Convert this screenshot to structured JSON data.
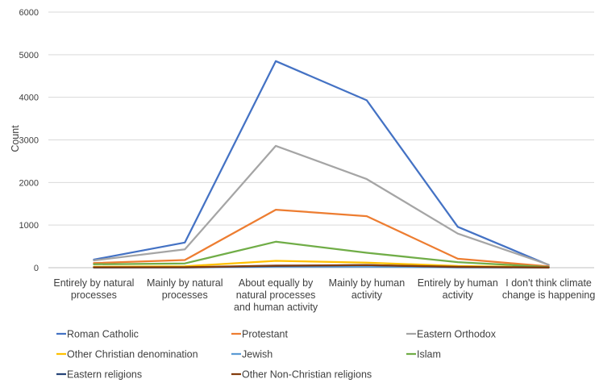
{
  "chart_data": {
    "type": "line",
    "title": "",
    "xlabel": "",
    "ylabel": "Count",
    "ylim": [
      0,
      6000
    ],
    "yticks": [
      0,
      1000,
      2000,
      3000,
      4000,
      5000,
      6000
    ],
    "grid": true,
    "legend_position": "bottom",
    "categories": [
      [
        "Entirely by natural",
        "processes"
      ],
      [
        "Mainly by natural",
        "processes"
      ],
      [
        "About equally by",
        "natural processes",
        "and human activity"
      ],
      [
        "Mainly by human",
        "activity"
      ],
      [
        "Entirely by human",
        "activity"
      ],
      [
        "I don't think climate",
        "change is happening"
      ]
    ],
    "series": [
      {
        "name": "Roman Catholic",
        "color": "#4472c4",
        "values": [
          190,
          590,
          4850,
          3930,
          960,
          65
        ]
      },
      {
        "name": "Protestant",
        "color": "#ed7d31",
        "values": [
          110,
          180,
          1360,
          1210,
          210,
          30
        ]
      },
      {
        "name": "Eastern Orthodox",
        "color": "#a5a5a5",
        "values": [
          170,
          430,
          2860,
          2080,
          800,
          70
        ]
      },
      {
        "name": "Other Christian denomination",
        "color": "#ffc000",
        "values": [
          20,
          35,
          160,
          120,
          40,
          10
        ]
      },
      {
        "name": "Jewish",
        "color": "#5b9bd5",
        "values": [
          3,
          5,
          25,
          25,
          8,
          2
        ]
      },
      {
        "name": "Islam",
        "color": "#70ad47",
        "values": [
          80,
          100,
          610,
          350,
          130,
          15
        ]
      },
      {
        "name": "Eastern religions",
        "color": "#264478",
        "values": [
          5,
          8,
          40,
          60,
          15,
          3
        ]
      },
      {
        "name": "Other Non-Christian religions",
        "color": "#843c0c",
        "values": [
          10,
          12,
          50,
          60,
          20,
          5
        ]
      }
    ]
  }
}
